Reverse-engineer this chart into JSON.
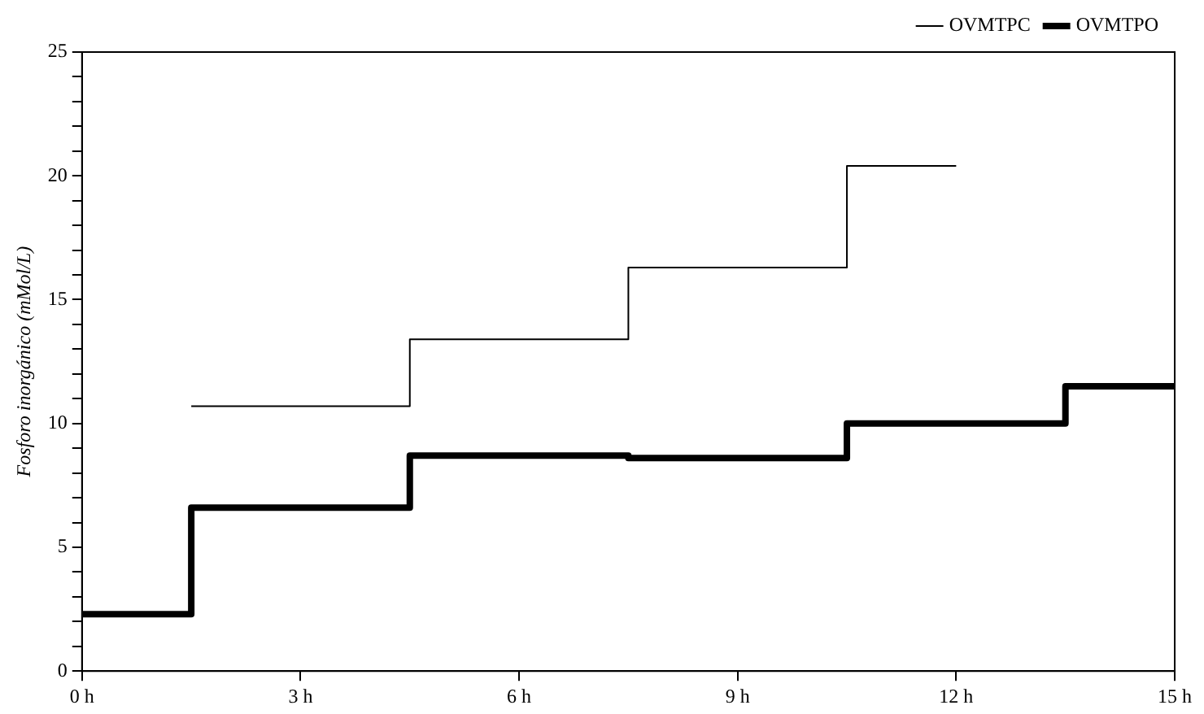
{
  "chart_data": {
    "type": "step",
    "ylabel": "Fosforo inorgánico (mMol/L)",
    "series": [
      {
        "name": "OVMTPC",
        "color": "#000000",
        "x": [
          1.5,
          4.5,
          7.5,
          10.5,
          12
        ],
        "values": [
          10.7,
          13.4,
          16.3,
          20.4,
          20.4
        ]
      },
      {
        "name": "OVMTPO",
        "color": "#000000",
        "x": [
          0,
          1.5,
          4.5,
          7.5,
          10.5,
          13.5,
          15
        ],
        "values": [
          2.3,
          6.6,
          8.7,
          8.6,
          10.0,
          11.5,
          11.5
        ]
      }
    ],
    "xlim": [
      0,
      15
    ],
    "xticks": [
      {
        "value": 0,
        "label": "0 h"
      },
      {
        "value": 3,
        "label": "3 h"
      },
      {
        "value": 6,
        "label": "6 h"
      },
      {
        "value": 9,
        "label": "9 h"
      },
      {
        "value": 12,
        "label": "12 h"
      },
      {
        "value": 15,
        "label": "15 h"
      }
    ],
    "ylim": [
      0,
      25
    ],
    "yticks": [
      0,
      {
        "value": 1,
        "label": null
      },
      {
        "value": 2,
        "label": null
      },
      {
        "value": 3,
        "label": null
      },
      {
        "value": 4,
        "label": null
      },
      5,
      {
        "value": 6,
        "label": null
      },
      {
        "value": 7,
        "label": null
      },
      {
        "value": 8,
        "label": null
      },
      {
        "value": 9,
        "label": null
      },
      10,
      {
        "value": 11,
        "label": null
      },
      {
        "value": 12,
        "label": null
      },
      {
        "value": 13,
        "label": null
      },
      {
        "value": 14,
        "label": null
      },
      15,
      {
        "value": 16,
        "label": null
      },
      {
        "value": 17,
        "label": null
      },
      {
        "value": 18,
        "label": null
      },
      {
        "value": 19,
        "label": null
      },
      20,
      {
        "value": 21,
        "label": null
      },
      {
        "value": 22,
        "label": null
      },
      {
        "value": 23,
        "label": null
      },
      {
        "value": 24,
        "label": null
      },
      25
    ],
    "grid": false,
    "legend": "top right",
    "marker": "none",
    "line_style": "solid"
  }
}
